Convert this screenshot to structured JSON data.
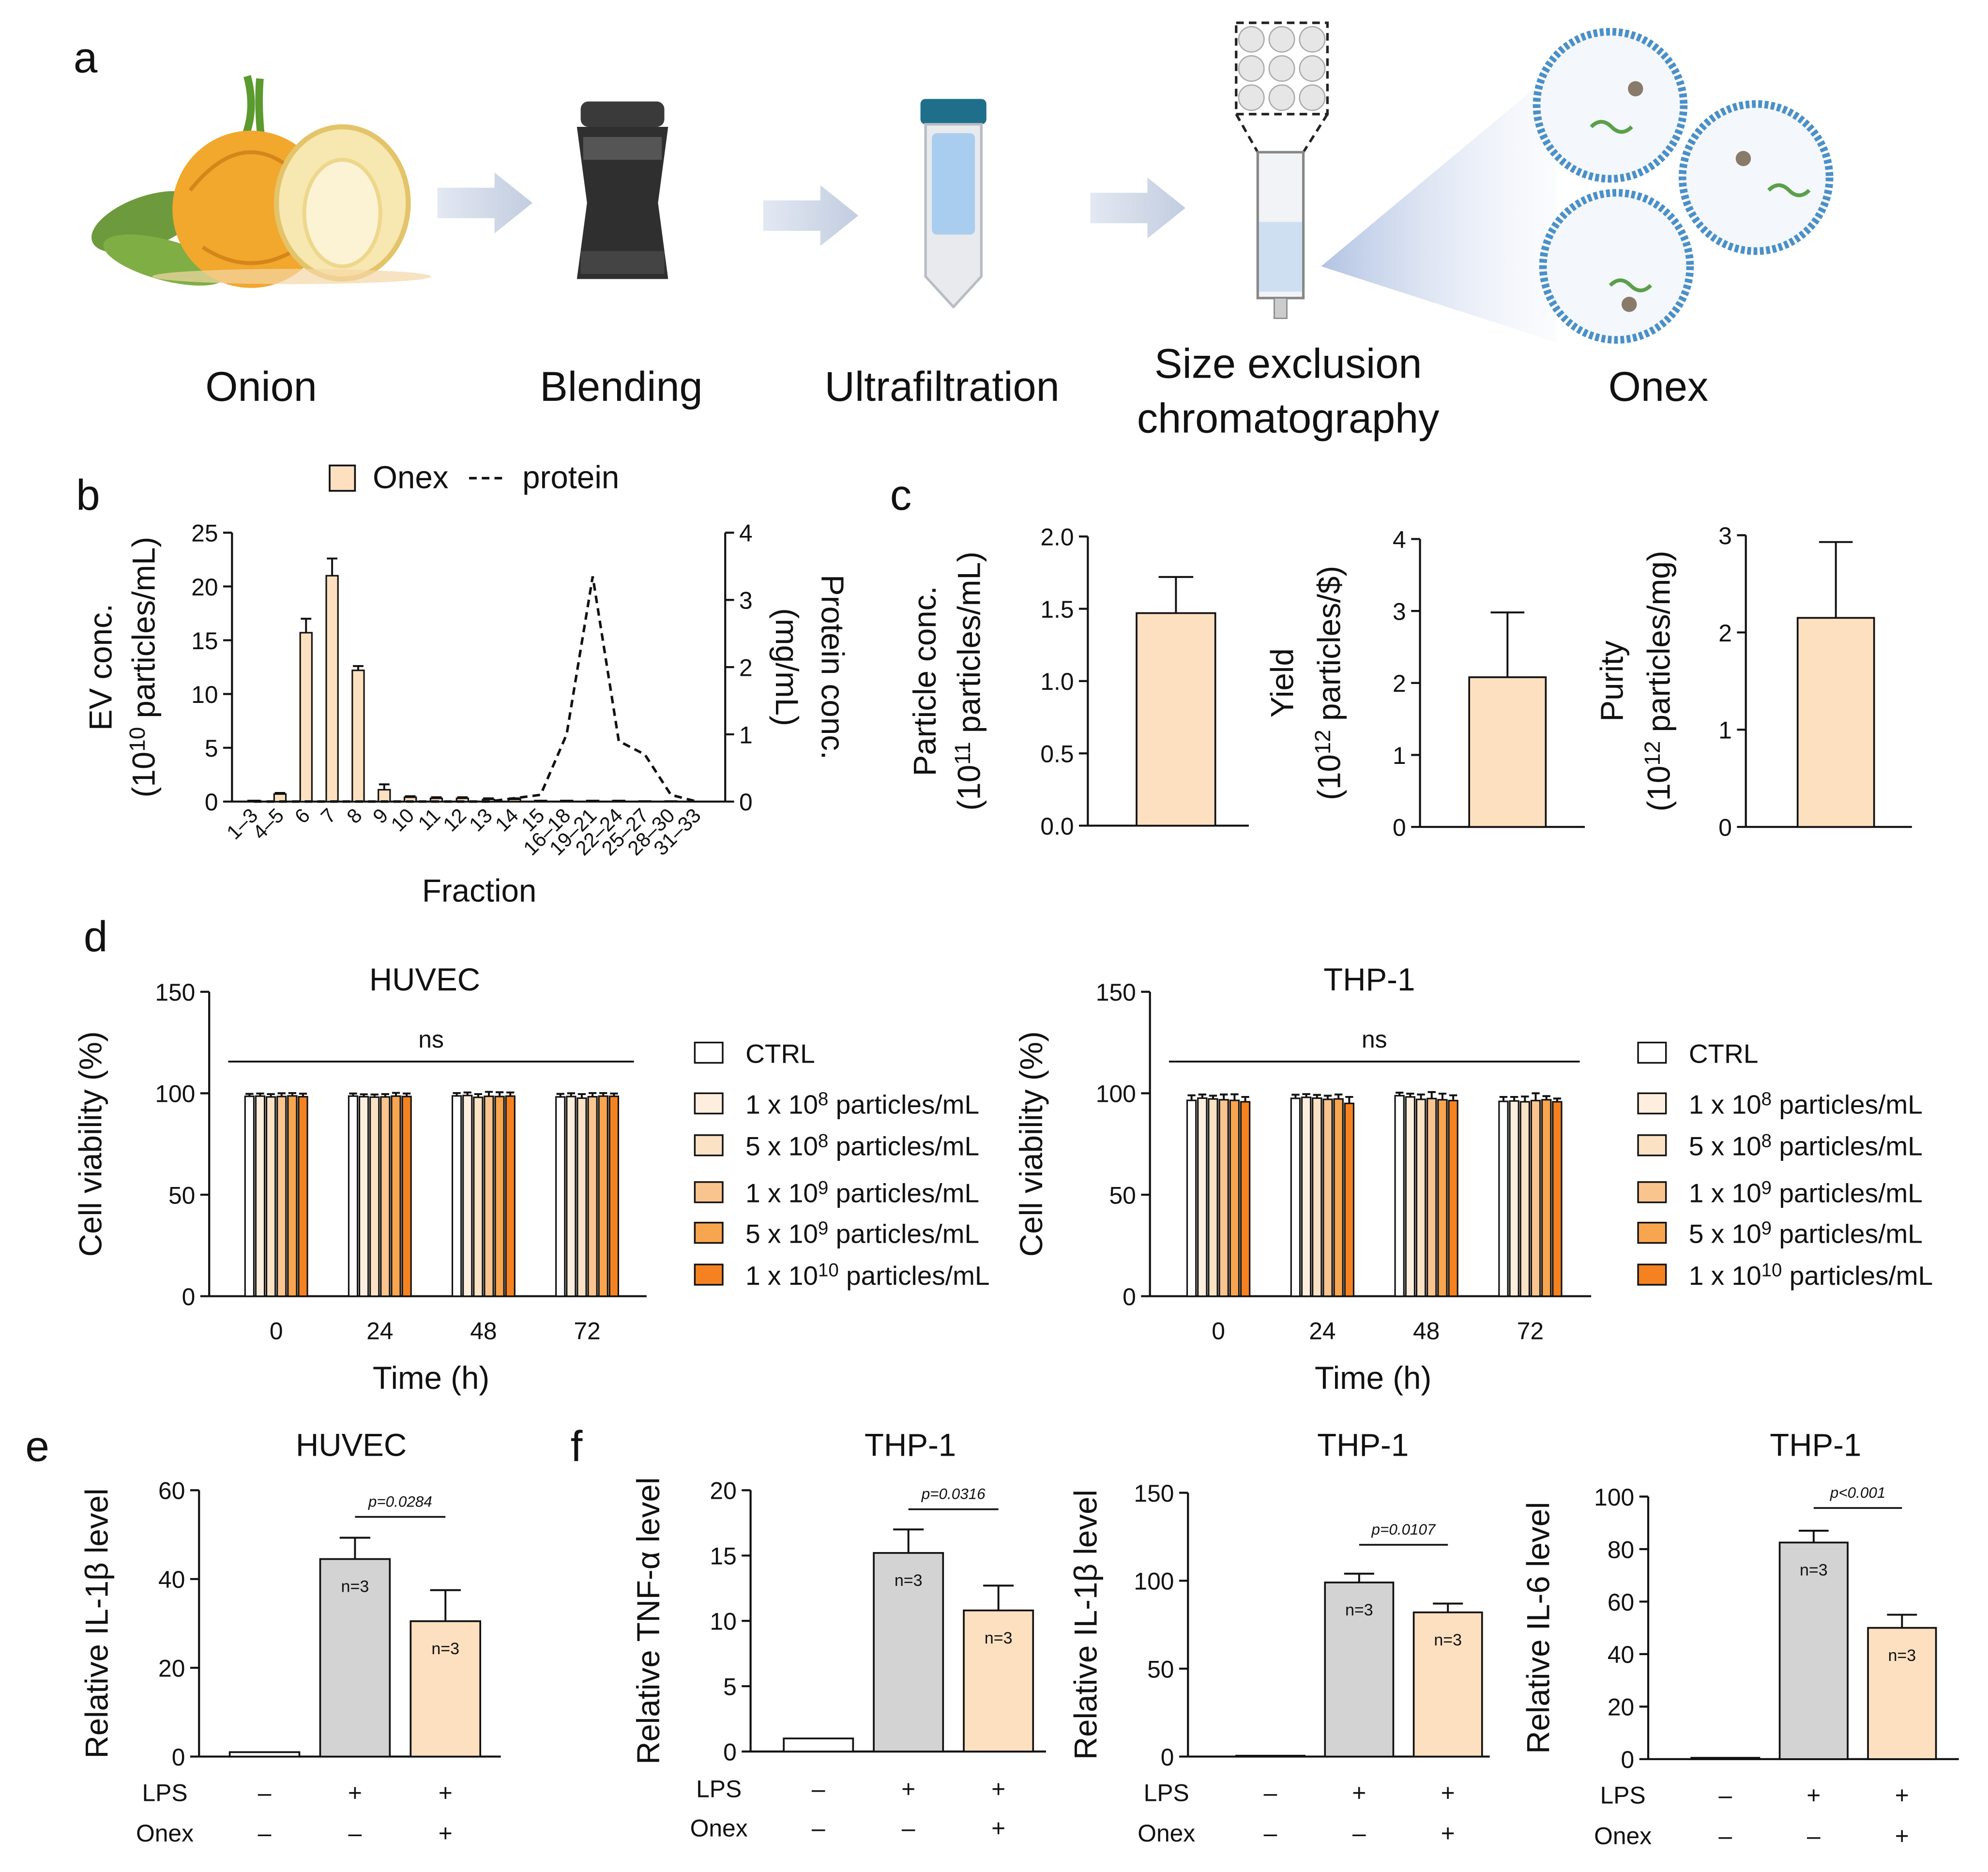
{
  "panel_labels": [
    "a",
    "b",
    "c",
    "d",
    "e",
    "f"
  ],
  "diagram": {
    "steps": [
      [
        "Onion"
      ],
      [
        "Blending"
      ],
      [
        "Ultrafiltration"
      ],
      [
        "Size exclusion",
        "chromatography"
      ],
      [
        "Onex"
      ]
    ]
  },
  "chart_data": [
    {
      "type": "bar",
      "categories": [
        "1–3",
        "4–5",
        "6",
        "7",
        "8",
        "9",
        "10",
        "11",
        "12",
        "13",
        "14",
        "15",
        "16–18",
        "19–21",
        "22–24",
        "25–27",
        "28–30",
        "31–33"
      ],
      "series": [
        {
          "name": "Onex",
          "color": "#fde0c0",
          "values": [
            0.1,
            0.7,
            15.7,
            21,
            12.2,
            1.1,
            0.4,
            0.3,
            0.3,
            0.2,
            0.2,
            0.1,
            0.1,
            0.1,
            0.1,
            0.05,
            0.05,
            0
          ],
          "errors": [
            0,
            0.1,
            1.3,
            1.6,
            0.4,
            0.5,
            0.1,
            0.1,
            0.1,
            0.1,
            0.1,
            0,
            0,
            0,
            0,
            0,
            0,
            0
          ]
        },
        {
          "name": "protein",
          "type": "line",
          "color": "#111111",
          "dashed": true,
          "axis": "y2",
          "values": [
            0,
            0,
            0,
            0,
            0,
            0,
            0,
            0,
            0,
            0,
            0.05,
            0.1,
            1.0,
            3.35,
            0.9,
            0.7,
            0.1,
            0
          ]
        }
      ],
      "xlabel": "Fraction",
      "ylabel": [
        "EV conc.",
        {
          "pre": "(10",
          "sup": "10",
          "post": " particles/mL)"
        }
      ],
      "y2label": [
        "Protein conc.",
        "(mg/mL)"
      ],
      "ylim": [
        0,
        25
      ],
      "yticks": [
        0,
        5,
        10,
        15,
        20,
        25
      ],
      "y2lim": [
        0,
        4
      ],
      "y2ticks": [
        0,
        1,
        2,
        3,
        4
      ],
      "legend": "top"
    },
    {
      "type": "bar",
      "categories": [
        null
      ],
      "values": [
        1.47
      ],
      "errors": [
        0.25
      ],
      "color": "#fde0c0",
      "ylabel": [
        "Particle conc.",
        {
          "pre": "(10",
          "sup": "11",
          "post": " particles/mL)"
        }
      ],
      "ylim": [
        0,
        2
      ],
      "yticks": [
        {
          "value": 0,
          "label": "0.0"
        },
        0.5,
        {
          "value": 1,
          "label": "1.0"
        },
        1.5,
        {
          "value": 2,
          "label": "2.0"
        }
      ]
    },
    {
      "type": "bar",
      "categories": [
        null
      ],
      "values": [
        2.08
      ],
      "errors": [
        0.9
      ],
      "color": "#fde0c0",
      "ylabel": [
        "Yield",
        {
          "pre": "(10",
          "sup": "12",
          "post": " particles/$)"
        }
      ],
      "ylim": [
        0,
        4
      ],
      "yticks": [
        0,
        1,
        2,
        3,
        4
      ]
    },
    {
      "type": "bar",
      "categories": [
        null
      ],
      "values": [
        2.15
      ],
      "errors": [
        0.78
      ],
      "color": "#fde0c0",
      "ylabel": [
        "Purity",
        {
          "pre": "(10",
          "sup": "12",
          "post": " particles/mg)"
        }
      ],
      "ylim": [
        0,
        3
      ],
      "yticks": [
        0,
        1,
        2,
        3
      ]
    },
    {
      "type": "bar",
      "title": "HUVEC",
      "annotation": "ns",
      "categories": [
        "0",
        "24",
        "48",
        "72"
      ],
      "xlabel": "Time (h)",
      "ylabel": "Cell viability (%)",
      "ylim": [
        0,
        150
      ],
      "yticks": [
        0,
        50,
        100,
        150
      ],
      "legend": "right",
      "series": [
        {
          "name": {
            "pre": "CTRL"
          },
          "color": "#ffffff",
          "values": [
            98.5,
            98.6,
            98.7,
            98.2
          ],
          "errors": [
            1.2,
            1.3,
            1.4,
            1.5
          ]
        },
        {
          "name": {
            "pre": "1 x 10",
            "sup": "8",
            "post": " particles/mL"
          },
          "color": "#fdeedd",
          "values": [
            98.6,
            98.3,
            98.9,
            98.4
          ],
          "errors": [
            1.3,
            1.2,
            1.5,
            1.6
          ]
        },
        {
          "name": {
            "pre": "5 x 10",
            "sup": "8",
            "post": " particles/mL"
          },
          "color": "#fce2c5",
          "values": [
            98.2,
            98.1,
            98.0,
            97.6
          ],
          "errors": [
            1.4,
            1.3,
            1.6,
            2.0
          ]
        },
        {
          "name": {
            "pre": "1 x 10",
            "sup": "9",
            "post": " particles/mL"
          },
          "color": "#fac48f",
          "values": [
            98.4,
            98.2,
            98.5,
            98.3
          ],
          "errors": [
            1.6,
            1.4,
            2.2,
            1.8
          ]
        },
        {
          "name": {
            "pre": "5 x 10",
            "sup": "9",
            "post": " particles/mL"
          },
          "color": "#f8a550",
          "values": [
            98.7,
            98.6,
            98.4,
            98.6
          ],
          "errors": [
            1.4,
            1.6,
            2.1,
            1.5
          ]
        },
        {
          "name": {
            "pre": "1 x 10",
            "sup": "10",
            "post": " particles/mL"
          },
          "color": "#f58220",
          "values": [
            98.3,
            98.4,
            98.6,
            98.5
          ],
          "errors": [
            1.5,
            1.5,
            1.8,
            1.4
          ]
        }
      ]
    },
    {
      "type": "bar",
      "title": "THP-1",
      "annotation": "ns",
      "categories": [
        "0",
        "24",
        "48",
        "72"
      ],
      "xlabel": "Time (h)",
      "ylabel": "Cell viability (%)",
      "ylim": [
        0,
        150
      ],
      "yticks": [
        0,
        50,
        100,
        150
      ],
      "legend": "right",
      "series": [
        {
          "name": {
            "pre": "CTRL"
          },
          "color": "#ffffff",
          "values": [
            96.5,
            97.5,
            98.8,
            96.0
          ],
          "errors": [
            2.5,
            1.8,
            1.5,
            2.2
          ]
        },
        {
          "name": {
            "pre": "1 x 10",
            "sup": "8",
            "post": " particles/mL"
          },
          "color": "#fdeedd",
          "values": [
            97.6,
            98.0,
            98.2,
            96.2
          ],
          "errors": [
            1.8,
            1.6,
            1.6,
            2.0
          ]
        },
        {
          "name": {
            "pre": "5 x 10",
            "sup": "8",
            "post": " particles/mL"
          },
          "color": "#fce2c5",
          "values": [
            97.2,
            97.6,
            97.0,
            95.8
          ],
          "errors": [
            1.6,
            1.6,
            2.4,
            2.6
          ]
        },
        {
          "name": {
            "pre": "1 x 10",
            "sup": "9",
            "post": " particles/mL"
          },
          "color": "#fac48f",
          "values": [
            96.8,
            97.0,
            97.4,
            96.4
          ],
          "errors": [
            2.6,
            1.8,
            3.2,
            3.6
          ]
        },
        {
          "name": {
            "pre": "5 x 10",
            "sup": "9",
            "post": " particles/mL"
          },
          "color": "#f8a550",
          "values": [
            96.5,
            97.2,
            96.8,
            96.8
          ],
          "errors": [
            3.0,
            2.2,
            3.0,
            1.8
          ]
        },
        {
          "name": {
            "pre": "1 x 10",
            "sup": "10",
            "post": " particles/mL"
          },
          "color": "#f58220",
          "values": [
            95.8,
            95.0,
            96.4,
            95.8
          ],
          "errors": [
            2.4,
            3.2,
            2.6,
            1.6
          ]
        }
      ]
    },
    {
      "type": "bar",
      "title": "HUVEC",
      "ylabel": "Relative IL-1β  level",
      "ylim": [
        0,
        60
      ],
      "yticks": [
        0,
        20,
        40,
        60
      ],
      "values": [
        1,
        44.5,
        30.5
      ],
      "errors": [
        0,
        4.8,
        7
      ],
      "colors": [
        "#ffffff",
        "#d3d3d3",
        "#fde0c0"
      ],
      "bar_labels": [
        null,
        "n=3",
        "n=3"
      ],
      "annotation": "p=0.0284",
      "rows": [
        {
          "label": "LPS",
          "values": [
            "–",
            "+",
            "+"
          ]
        },
        {
          "label": "Onex",
          "values": [
            "–",
            "–",
            "+"
          ]
        }
      ]
    },
    {
      "type": "bar",
      "title": "THP-1",
      "ylabel": "Relative TNF-α  level",
      "ylim": [
        0,
        20
      ],
      "yticks": [
        0,
        5,
        10,
        15,
        20
      ],
      "values": [
        1,
        15.2,
        10.8
      ],
      "errors": [
        0,
        1.8,
        1.9
      ],
      "colors": [
        "#ffffff",
        "#d3d3d3",
        "#fde0c0"
      ],
      "bar_labels": [
        null,
        "n=3",
        "n=3"
      ],
      "annotation": "p=0.0316",
      "rows": [
        {
          "label": "LPS",
          "values": [
            "–",
            "+",
            "+"
          ]
        },
        {
          "label": "Onex",
          "values": [
            "–",
            "–",
            "+"
          ]
        }
      ]
    },
    {
      "type": "bar",
      "title": "THP-1",
      "ylabel": "Relative IL-1β  level",
      "ylim": [
        0,
        150
      ],
      "yticks": [
        0,
        50,
        100,
        150
      ],
      "values": [
        0.5,
        99,
        82
      ],
      "errors": [
        0,
        5,
        5
      ],
      "colors": [
        "#ffffff",
        "#d3d3d3",
        "#fde0c0"
      ],
      "bar_labels": [
        null,
        "n=3",
        "n=3"
      ],
      "annotation": "p=0.0107",
      "rows": [
        {
          "label": "LPS",
          "values": [
            "–",
            "+",
            "+"
          ]
        },
        {
          "label": "Onex",
          "values": [
            "–",
            "–",
            "+"
          ]
        }
      ]
    },
    {
      "type": "bar",
      "title": "THP-1",
      "ylabel": "Relative IL-6  level",
      "ylim": [
        0,
        100
      ],
      "yticks": [
        0,
        20,
        40,
        60,
        80,
        100
      ],
      "values": [
        0.5,
        82.5,
        50
      ],
      "errors": [
        0,
        4.5,
        5
      ],
      "colors": [
        "#ffffff",
        "#d3d3d3",
        "#fde0c0"
      ],
      "bar_labels": [
        null,
        "n=3",
        "n=3"
      ],
      "annotation": "p<0.001",
      "rows": [
        {
          "label": "LPS",
          "values": [
            "–",
            "+",
            "+"
          ]
        },
        {
          "label": "Onex",
          "values": [
            "–",
            "–",
            "+"
          ]
        }
      ]
    }
  ]
}
